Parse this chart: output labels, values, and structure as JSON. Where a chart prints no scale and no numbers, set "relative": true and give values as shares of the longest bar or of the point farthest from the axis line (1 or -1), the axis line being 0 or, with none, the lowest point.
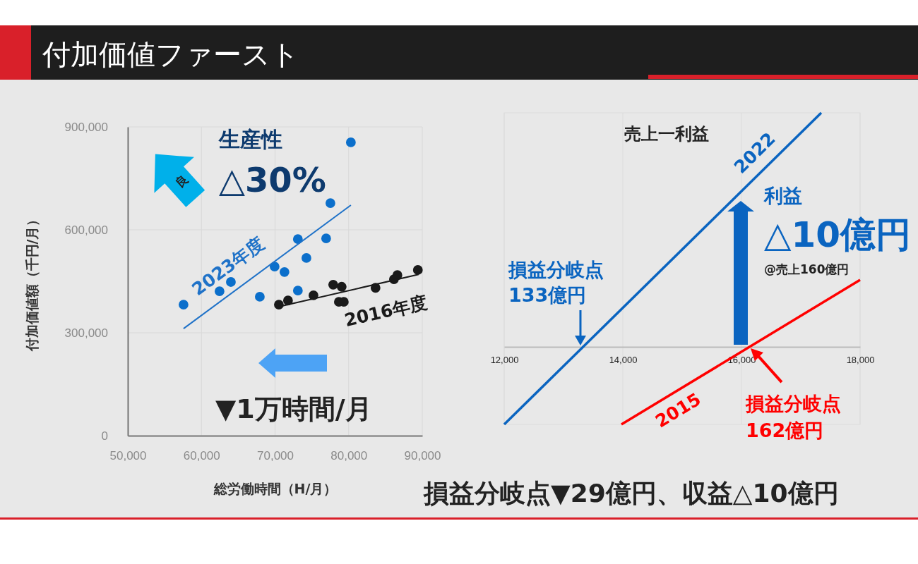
{
  "chart_data": [
    {
      "type": "scatter",
      "title": "付加価値ファースト",
      "xlabel": "総労働時間（H/月）",
      "ylabel": "付加価値額（千円/月）",
      "xlim": [
        50000,
        90000
      ],
      "xticks": [
        {
          "value": 50000,
          "label": "50,000"
        },
        {
          "value": 60000,
          "label": "60,000"
        },
        {
          "value": 70000,
          "label": "70,000"
        },
        {
          "value": 80000,
          "label": "80,000"
        },
        {
          "value": 90000,
          "label": "90,000"
        }
      ],
      "ylim": [
        0,
        900000
      ],
      "yticks": [
        0,
        {
          "value": 300000,
          "label": "300,000"
        },
        {
          "value": 600000,
          "label": "600,000"
        },
        {
          "value": 900000,
          "label": "900,000"
        }
      ],
      "grid": true,
      "series": [
        {
          "marker": "circle",
          "color": "#0b6fcb",
          "x": [
            57570,
            62460,
            64000,
            67930,
            69940,
            71280,
            73100,
            73100,
            74260,
            76940,
            77520,
            80300
          ],
          "values": [
            382000,
            421000,
            448000,
            405000,
            493000,
            477000,
            423000,
            573000,
            518000,
            575000,
            678000,
            855000
          ]
        },
        {
          "marker": "circle",
          "color": "#1a1a1a",
          "x": [
            70520,
            71760,
            75220,
            77900,
            79050,
            78670,
            79340,
            83650,
            86150,
            86620,
            89400
          ],
          "values": [
            382000,
            394000,
            409000,
            440000,
            434000,
            390000,
            390000,
            431000,
            456000,
            468000,
            483000
          ]
        },
        {
          "type": "line",
          "name": "2023年度",
          "color": "#1f72c8",
          "x": [
            57570,
            80300
          ],
          "values": [
            312000,
            672000
          ]
        },
        {
          "type": "line",
          "name": "2016年度",
          "color": "#1a1a1a",
          "x": [
            70520,
            89500
          ],
          "values": [
            376000,
            470000
          ]
        }
      ],
      "annotations": [
        "生産性",
        "△30%",
        "良",
        "▼1万時間/月"
      ]
    },
    {
      "type": "line",
      "title": "売上一利益",
      "relative": true,
      "xlim": [
        12000,
        18000
      ],
      "xticks": [
        {
          "value": 12000,
          "label": "12,000"
        },
        {
          "value": 14000,
          "label": "14,000"
        },
        {
          "value": 16000,
          "label": "16,000"
        },
        {
          "value": 18000,
          "label": "18,000"
        }
      ],
      "grid": "x",
      "series": [
        {
          "name": "2022",
          "color": "#0a64c0",
          "x": [
            12000,
            17345
          ],
          "values": [
            -0.331,
            1
          ]
        },
        {
          "name": "2015",
          "color": "#ff0000",
          "x": [
            13976,
            18000
          ],
          "values": [
            -0.331,
            0.286
          ]
        }
      ],
      "annotations": [
        {
          "text": "損益分岐点\n133億円",
          "x": 13333,
          "y": 0
        },
        "利益",
        "△10億円",
        "@売上160億円",
        {
          "text": "損益分岐点\n162億円",
          "x": 16130,
          "y": 0
        },
        "損益分岐点▼29億円、収益△10億円"
      ]
    }
  ]
}
